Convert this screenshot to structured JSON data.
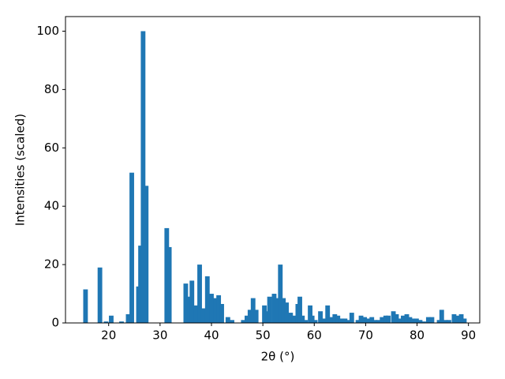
{
  "chart_data": {
    "type": "bar",
    "xlabel": "2θ (°)",
    "ylabel": "Intensities (scaled)",
    "color": "#1f77b4",
    "x": [
      15.5,
      18.3,
      19.5,
      20.5,
      22.5,
      23.8,
      24.5,
      25.8,
      26.2,
      26.7,
      27.3,
      31.3,
      31.8,
      35,
      35.7,
      36.2,
      37,
      37.7,
      38.4,
      39.2,
      40,
      40.8,
      41.4,
      42,
      43.2,
      44,
      46.2,
      46.9,
      47.5,
      48.1,
      48.7,
      50.3,
      50.9,
      51.3,
      52.2,
      52.8,
      53.4,
      54,
      54.6,
      55.4,
      56,
      56.8,
      57.2,
      57.7,
      58.3,
      59.2,
      59.6,
      60.2,
      61.2,
      62,
      62.6,
      63.3,
      64,
      64.6,
      65.3,
      66,
      66.8,
      67.3,
      68.5,
      69.1,
      69.8,
      70.4,
      71.2,
      71.8,
      72.5,
      73.2,
      73.9,
      74.4,
      75.4,
      76,
      76.6,
      77.3,
      78,
      78.6,
      79.2,
      79.9,
      80.6,
      81.3,
      82.2,
      82.9,
      84.3,
      84.8,
      85.5,
      86.2,
      87.2,
      87.9,
      88.6,
      89.2
    ],
    "values": [
      11.5,
      19,
      0.5,
      2.5,
      0.5,
      3,
      51.5,
      12.5,
      26.5,
      100,
      47,
      32.5,
      26,
      13.5,
      9,
      14.5,
      6,
      20,
      5,
      16,
      10,
      8.5,
      9.5,
      6.5,
      2,
      1,
      1,
      2.5,
      4.5,
      8.5,
      4.5,
      6,
      4,
      9,
      10,
      8.5,
      20,
      8.5,
      7,
      3.5,
      2.5,
      6.5,
      9,
      2.5,
      1,
      6,
      2.5,
      1,
      4,
      1.5,
      6,
      2,
      3,
      2.5,
      1.5,
      1.5,
      1,
      3.5,
      1,
      2.5,
      2,
      1.5,
      2,
      1,
      1,
      2,
      2.5,
      2.5,
      4,
      3,
      1.5,
      2.5,
      3,
      2,
      1.5,
      1.5,
      1,
      0.5,
      2,
      2,
      1,
      4.5,
      1,
      1,
      3,
      2.5,
      3,
      1.5
    ],
    "xlim": [
      11.6,
      92.2
    ],
    "ylim": [
      0,
      105
    ],
    "xticks": [
      20,
      30,
      40,
      50,
      60,
      70,
      80,
      90
    ],
    "yticks": [
      0,
      20,
      40,
      60,
      80,
      100
    ]
  }
}
